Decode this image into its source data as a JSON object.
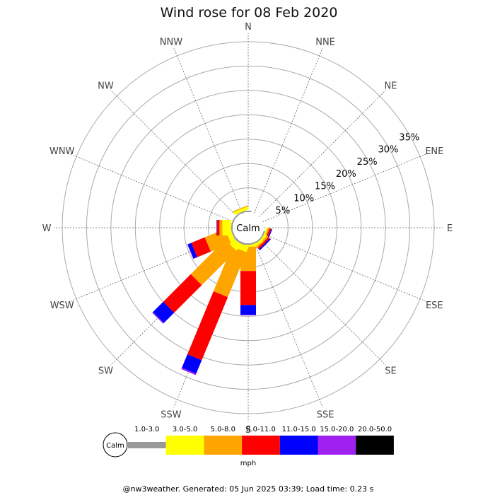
{
  "chart_data": {
    "type": "wind-rose",
    "title": "Wind rose for 08 Feb 2020",
    "directions": [
      "N",
      "NNE",
      "NE",
      "ENE",
      "E",
      "ESE",
      "SE",
      "SSE",
      "S",
      "SSW",
      "SW",
      "WSW",
      "W",
      "WNW",
      "NW",
      "NNW"
    ],
    "radial_ticks": [
      "5%",
      "10%",
      "15%",
      "20%",
      "25%",
      "30%",
      "35%"
    ],
    "radial_max_percent": 35,
    "center_label": "Calm",
    "speed_unit": "mph",
    "speed_bins": [
      {
        "label": "1.0-3.0",
        "color": "#999999"
      },
      {
        "label": "3.0-5.0",
        "color": "#ffff00"
      },
      {
        "label": "5.0-8.0",
        "color": "#ffa500"
      },
      {
        "label": "8.0-11.0",
        "color": "#ff0000"
      },
      {
        "label": "11.0-15.0",
        "color": "#0000ff"
      },
      {
        "label": "15.0-20.0",
        "color": "#a020f0"
      },
      {
        "label": "20.0-50.0",
        "color": "#000000"
      }
    ],
    "series": [
      {
        "direction": "N",
        "values": [
          0.3,
          0.0,
          0.0,
          0.0,
          0.0,
          0.0,
          0.0
        ]
      },
      {
        "direction": "NNE",
        "values": [
          0.0,
          0.0,
          0.0,
          0.0,
          0.0,
          0.0,
          0.0
        ]
      },
      {
        "direction": "NE",
        "values": [
          0.0,
          0.0,
          0.0,
          0.0,
          0.0,
          0.0,
          0.0
        ]
      },
      {
        "direction": "ENE",
        "values": [
          0.0,
          0.0,
          0.0,
          0.0,
          0.0,
          0.0,
          0.0
        ]
      },
      {
        "direction": "E",
        "values": [
          0.0,
          0.0,
          0.0,
          0.0,
          0.0,
          0.0,
          0.0
        ]
      },
      {
        "direction": "ESE",
        "values": [
          0.3,
          0.3,
          0.3,
          0.4,
          0.2,
          0.0,
          0.0
        ]
      },
      {
        "direction": "SE",
        "values": [
          0.3,
          0.4,
          0.4,
          0.4,
          0.3,
          0.0,
          0.0
        ]
      },
      {
        "direction": "SSE",
        "values": [
          0.3,
          0.4,
          0.0,
          0.0,
          0.0,
          0.0,
          0.0
        ]
      },
      {
        "direction": "S",
        "values": [
          0.3,
          0.4,
          5.0,
          7.0,
          2.0,
          0.1,
          0.0
        ]
      },
      {
        "direction": "SSW",
        "values": [
          0.4,
          1.2,
          10.0,
          14.0,
          3.0,
          0.3,
          0.0
        ]
      },
      {
        "direction": "SW",
        "values": [
          0.4,
          1.5,
          10.0,
          8.0,
          3.0,
          0.2,
          0.0
        ]
      },
      {
        "direction": "WSW",
        "values": [
          0.3,
          1.0,
          4.5,
          3.0,
          0.8,
          0.1,
          0.0
        ]
      },
      {
        "direction": "W",
        "values": [
          0.3,
          1.8,
          0.6,
          0.5,
          0.1,
          0.0,
          0.0
        ]
      },
      {
        "direction": "WNW",
        "values": [
          0.3,
          0.0,
          0.0,
          0.0,
          0.0,
          0.0,
          0.0
        ]
      },
      {
        "direction": "NW",
        "values": [
          0.3,
          0.0,
          0.0,
          0.0,
          0.0,
          0.0,
          0.0
        ]
      },
      {
        "direction": "NNW",
        "values": [
          0.3,
          0.6,
          0.2,
          0.0,
          0.0,
          0.0,
          0.0
        ]
      }
    ],
    "footer": "@nw3weather. Generated: 05 Jun 2025 03:39; Load time: 0.23 s"
  }
}
